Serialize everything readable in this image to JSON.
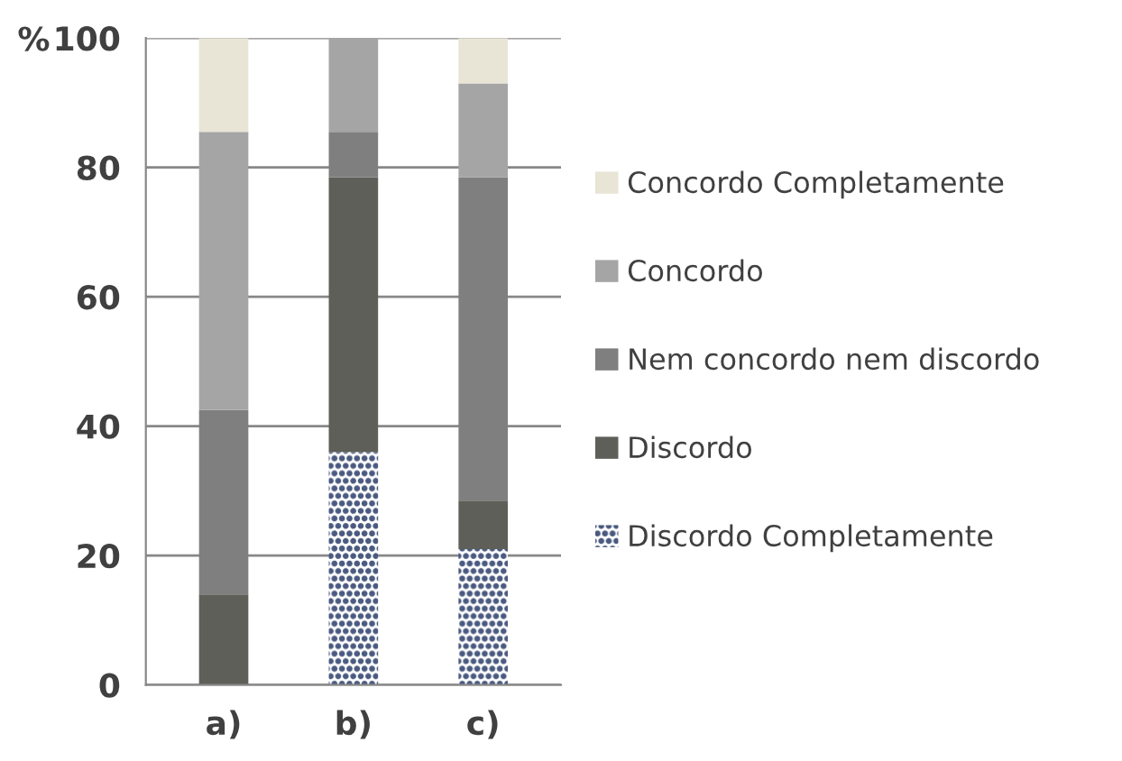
{
  "chart_data": {
    "type": "bar",
    "stacked": true,
    "ylabel": "%",
    "categories": [
      "a)",
      "b)",
      "c)"
    ],
    "series": [
      {
        "name": "Discordo Completamente",
        "color": "#4a5a80",
        "values": [
          0,
          36,
          21
        ]
      },
      {
        "name": "Discordo",
        "color": "#5e5f58",
        "values": [
          14,
          42.5,
          7.5
        ]
      },
      {
        "name": "Nem concordo nem discordo",
        "color": "#7f7f7f",
        "values": [
          28.5,
          7,
          50
        ]
      },
      {
        "name": "Concordo",
        "color": "#a5a5a5",
        "values": [
          43,
          14.5,
          14.5
        ]
      },
      {
        "name": "Concordo Completamente",
        "color": "#e8e5d6",
        "values": [
          14.5,
          0,
          7
        ]
      }
    ],
    "ylim": [
      0,
      100
    ],
    "yticks": [
      0,
      20,
      40,
      60,
      80,
      100
    ],
    "grid": "y",
    "legend": "right"
  }
}
